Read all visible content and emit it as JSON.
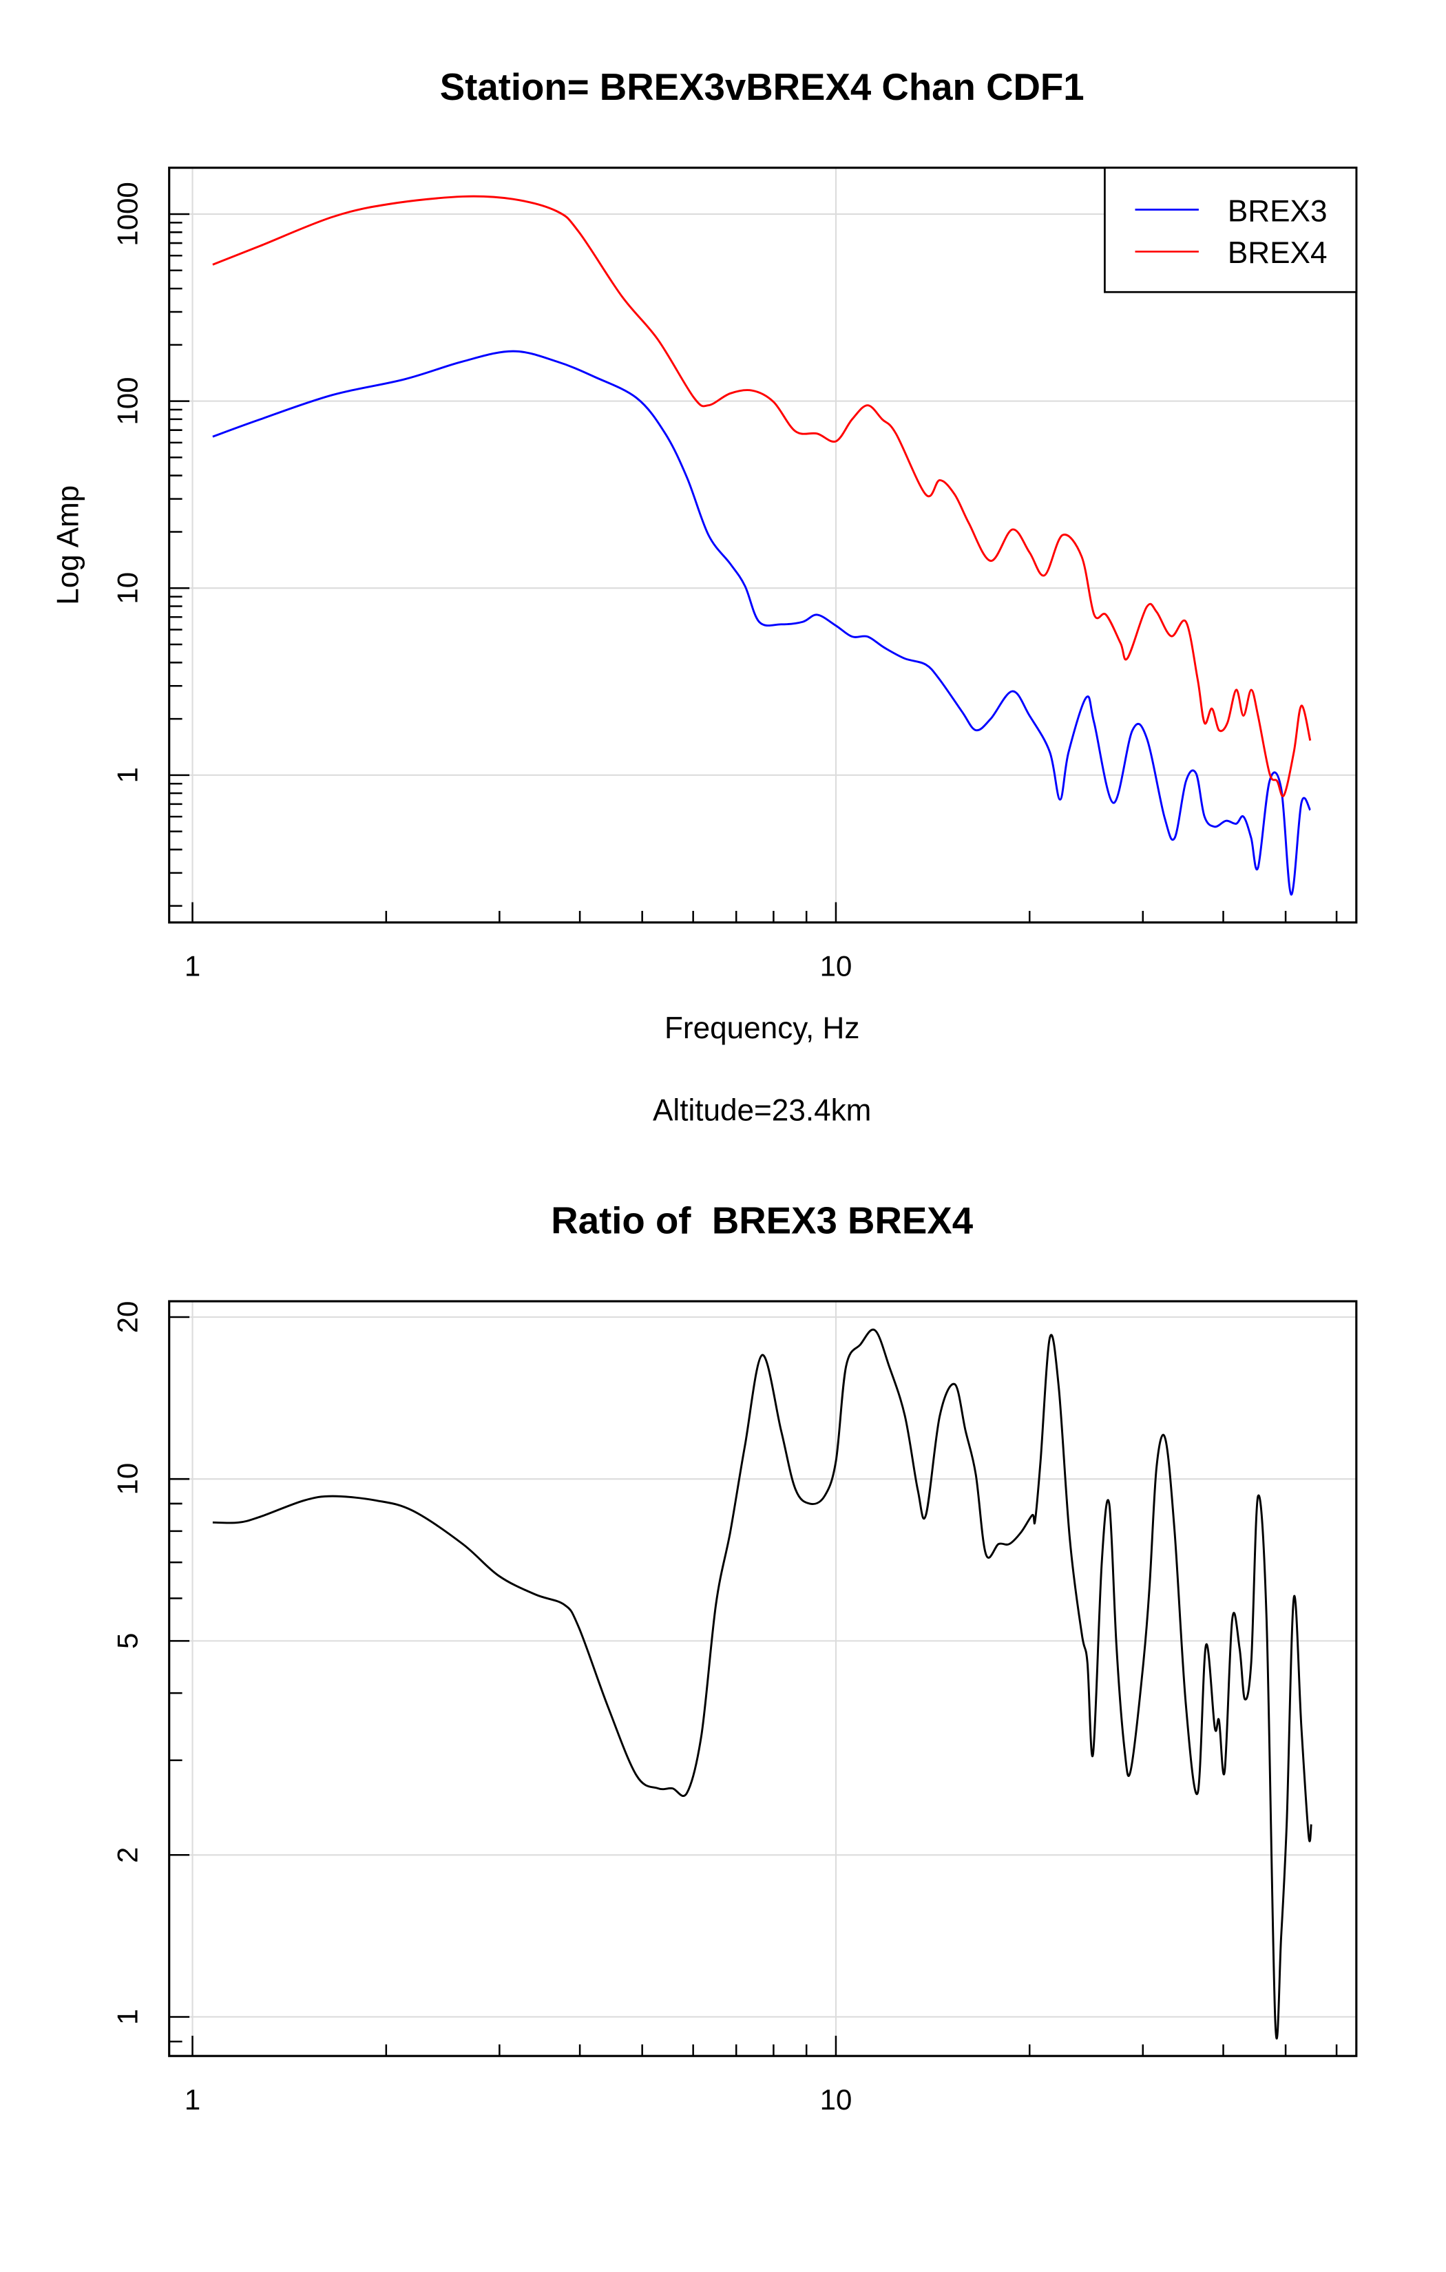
{
  "chart_data": [
    {
      "type": "line",
      "title": "Station= BREX3vBREX4 Chan CDF1",
      "xlabel": "Frequency, Hz",
      "ylabel": "Log Amp",
      "subtitle": "Altitude=23.4km",
      "xscale": "log",
      "yscale": "log",
      "xlim": [
        0.92,
        64.4
      ],
      "ylim": [
        0.163,
        1770
      ],
      "xticks": [
        {
          "v": 1,
          "label": "1"
        },
        {
          "v": 10,
          "label": "10"
        }
      ],
      "yticks": [
        {
          "v": 1,
          "label": "1"
        },
        {
          "v": 10,
          "label": "10"
        },
        {
          "v": 100,
          "label": "100"
        },
        {
          "v": 1000,
          "label": "1000"
        }
      ],
      "grid": true,
      "legend": {
        "position": "top-right"
      },
      "series": [
        {
          "name": "BREX3",
          "color": "#0000ff",
          "x": [
            1.075,
            1.275,
            1.652,
            2.14,
            2.63,
            3.15,
            3.68,
            4.19,
            4.9,
            5.43,
            5.87,
            6.34,
            6.85,
            7.22,
            7.6,
            8.22,
            8.88,
            9.35,
            10,
            10.6,
            11.2,
            11.9,
            12.8,
            13.8,
            14.5,
            15.7,
            16.5,
            17.4,
            18.8,
            20.0,
            21.5,
            22.3,
            23.0,
            24.5,
            25.2,
            27.0,
            28.9,
            30.4,
            32.4,
            33.6,
            35.0,
            36.3,
            37.4,
            38.8,
            40.4,
            41.9,
            43.0,
            44.2,
            45.3,
            47.2,
            49.2,
            51.0,
            52.9,
            54.6
          ],
          "y": [
            64.5,
            80,
            108,
            131,
            163,
            185,
            163,
            136,
            104,
            67,
            39,
            19.2,
            13.5,
            10.3,
            6.6,
            6.4,
            6.6,
            7.2,
            6.3,
            5.5,
            5.5,
            4.8,
            4.2,
            3.9,
            3.24,
            2.19,
            1.74,
            2.0,
            2.81,
            2.08,
            1.33,
            0.74,
            1.33,
            2.6,
            1.9,
            0.71,
            1.74,
            1.59,
            0.6,
            0.46,
            0.93,
            1.02,
            0.6,
            0.53,
            0.57,
            0.55,
            0.6,
            0.46,
            0.32,
            0.93,
            0.85,
            0.23,
            0.71,
            0.65
          ]
        },
        {
          "name": "BREX4",
          "color": "#ff0000",
          "x": [
            1.075,
            1.275,
            1.652,
            2.03,
            2.63,
            3.15,
            3.68,
            3.98,
            4.65,
            5.29,
            6.02,
            6.34,
            6.85,
            7.41,
            8.0,
            8.65,
            9.35,
            10,
            10.6,
            11.2,
            11.8,
            12.4,
            13.8,
            14.5,
            15.3,
            16.1,
            17.4,
            18.8,
            20.0,
            21.1,
            22.5,
            24.1,
            25.2,
            26.3,
            27.7,
            28.4,
            30.4,
            31.5,
            33.2,
            35.0,
            36.5,
            37.4,
            38.4,
            39.4,
            40.6,
            41.9,
            43.0,
            44.2,
            45.3,
            47.2,
            48.5,
            49.7,
            51.5,
            52.9,
            54.6
          ],
          "y": [
            537,
            677,
            967,
            1135,
            1241,
            1202,
            1038,
            809,
            363,
            213,
            104,
            95,
            110,
            114,
            99,
            69,
            67,
            61,
            80,
            95,
            80,
            67,
            31.6,
            37.8,
            31.6,
            22.2,
            14.0,
            20.6,
            15.5,
            11.7,
            19.2,
            14.7,
            7.2,
            7.2,
            5.06,
            4.23,
            7.9,
            7.48,
            5.53,
            6.6,
            3.24,
            1.9,
            2.27,
            1.74,
            1.9,
            2.86,
            2.08,
            2.86,
            2.08,
            1.02,
            0.93,
            0.78,
            1.33,
            2.35,
            1.53
          ]
        }
      ]
    },
    {
      "type": "line",
      "title": "Ratio of  BREX3 BREX4",
      "xlabel": "",
      "ylabel": "",
      "xscale": "log",
      "yscale": "log",
      "xlim": [
        0.92,
        64.4
      ],
      "ylim": [
        0.846,
        21.4
      ],
      "xticks": [
        {
          "v": 1,
          "label": "1"
        },
        {
          "v": 10,
          "label": "10"
        }
      ],
      "yticks": [
        {
          "v": 1,
          "label": "1"
        },
        {
          "v": 2,
          "label": "2"
        },
        {
          "v": 5,
          "label": "5"
        },
        {
          "v": 10,
          "label": "10"
        },
        {
          "v": 20,
          "label": "20"
        }
      ],
      "grid": true,
      "series": [
        {
          "name": "ratio",
          "color": "#000000",
          "x": [
            1.075,
            1.18,
            1.275,
            1.49,
            1.652,
            1.93,
            2.2,
            2.63,
            2.99,
            3.41,
            3.78,
            3.98,
            4.42,
            4.9,
            5.29,
            5.57,
            5.87,
            6.18,
            6.51,
            6.85,
            7.22,
            7.68,
            8.22,
            8.65,
            9.11,
            9.6,
            10,
            10.37,
            10.92,
            11.5,
            12.1,
            12.8,
            13.4,
            13.8,
            14.5,
            15.3,
            15.9,
            16.5,
            17.1,
            17.9,
            18.6,
            19.4,
            20.2,
            20.4,
            20.8,
            21.5,
            22.2,
            23.1,
            24.1,
            24.6,
            25.1,
            25.9,
            26.6,
            27.3,
            28.1,
            28.7,
            29.9,
            30.7,
            31.5,
            32.5,
            33.6,
            35.0,
            36.5,
            37.6,
            38.8,
            39.4,
            40.2,
            41.3,
            42.4,
            43.2,
            44.2,
            45.3,
            46.7,
            48.2,
            49.2,
            50.2,
            51.5,
            52.9,
            54.3,
            54.8
          ],
          "y": [
            8.3,
            8.3,
            8.51,
            9.12,
            9.29,
            9.12,
            8.73,
            7.57,
            6.61,
            6.1,
            5.84,
            5.32,
            3.78,
            2.81,
            2.66,
            2.66,
            2.61,
            3.34,
            5.84,
            7.96,
            11.5,
            17.0,
            12.3,
            9.57,
            9.0,
            9.29,
            10.8,
            16.2,
            17.8,
            18.9,
            16.2,
            13.1,
            9.57,
            8.57,
            13.1,
            15.0,
            12.3,
            10.2,
            7.25,
            7.57,
            7.57,
            7.96,
            8.57,
            8.36,
            10.8,
            18.3,
            14.8,
            7.71,
            5.16,
            4.56,
            3.08,
            7.03,
            9.0,
            4.85,
            3.14,
            2.86,
            4.28,
            6.21,
            10.5,
            11.9,
            8.0,
            3.78,
            2.61,
            4.91,
            3.45,
            3.56,
            2.86,
            5.49,
            4.85,
            3.9,
            4.56,
            9.29,
            5.49,
            0.97,
            1.41,
            2.31,
            6.02,
            3.45,
            2.17,
            2.28
          ]
        }
      ]
    }
  ]
}
